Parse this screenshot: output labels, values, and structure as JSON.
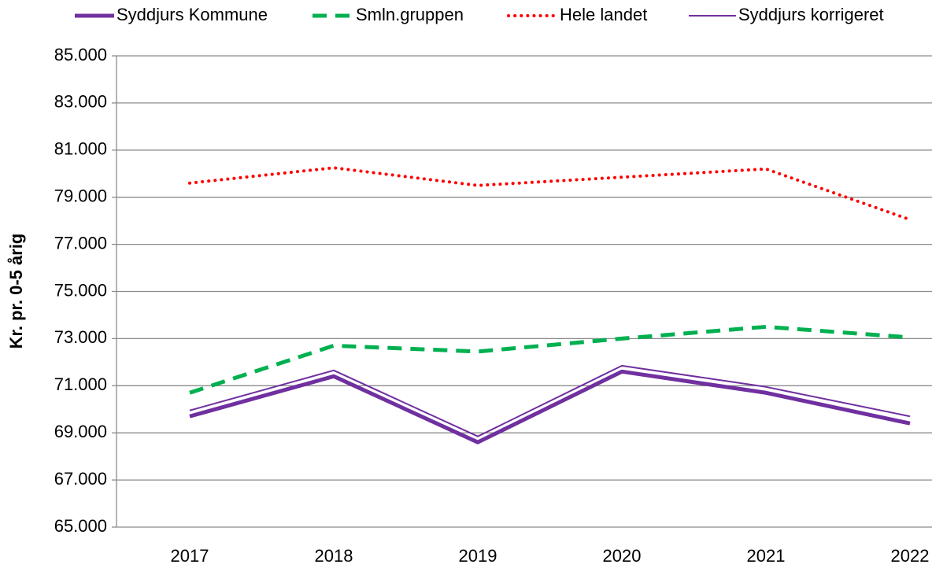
{
  "chart_data": {
    "type": "line",
    "ylabel": "Kr. pr. 0-5 årig",
    "categories": [
      "2017",
      "2018",
      "2019",
      "2020",
      "2021",
      "2022"
    ],
    "series": [
      {
        "name": "Syddjurs Kommune",
        "color": "#7030a0",
        "style": "thick",
        "values": [
          69700,
          71400,
          68600,
          71600,
          70700,
          69400
        ]
      },
      {
        "name": "Smln.gruppen",
        "color": "#00b050",
        "style": "dashed",
        "values": [
          70700,
          72700,
          72450,
          73000,
          73500,
          73050
        ]
      },
      {
        "name": "Hele landet",
        "color": "#ff0000",
        "style": "dotted",
        "values": [
          79600,
          80250,
          79500,
          79850,
          80200,
          78050
        ]
      },
      {
        "name": "Syddjurs korrigeret",
        "color": "#7030a0",
        "style": "thin",
        "values": [
          69950,
          71650,
          68850,
          71850,
          70950,
          69700
        ]
      }
    ],
    "ylim": [
      65000,
      85000
    ],
    "yticks": [
      {
        "value": 65000,
        "label": "65.000"
      },
      {
        "value": 67000,
        "label": "67.000"
      },
      {
        "value": 69000,
        "label": "69.000"
      },
      {
        "value": 71000,
        "label": "71.000"
      },
      {
        "value": 73000,
        "label": "73.000"
      },
      {
        "value": 75000,
        "label": "75.000"
      },
      {
        "value": 77000,
        "label": "77.000"
      },
      {
        "value": 79000,
        "label": "79.000"
      },
      {
        "value": 81000,
        "label": "81.000"
      },
      {
        "value": 83000,
        "label": "83.000"
      },
      {
        "value": 85000,
        "label": "85.000"
      }
    ],
    "grid": true,
    "legend": "top"
  }
}
